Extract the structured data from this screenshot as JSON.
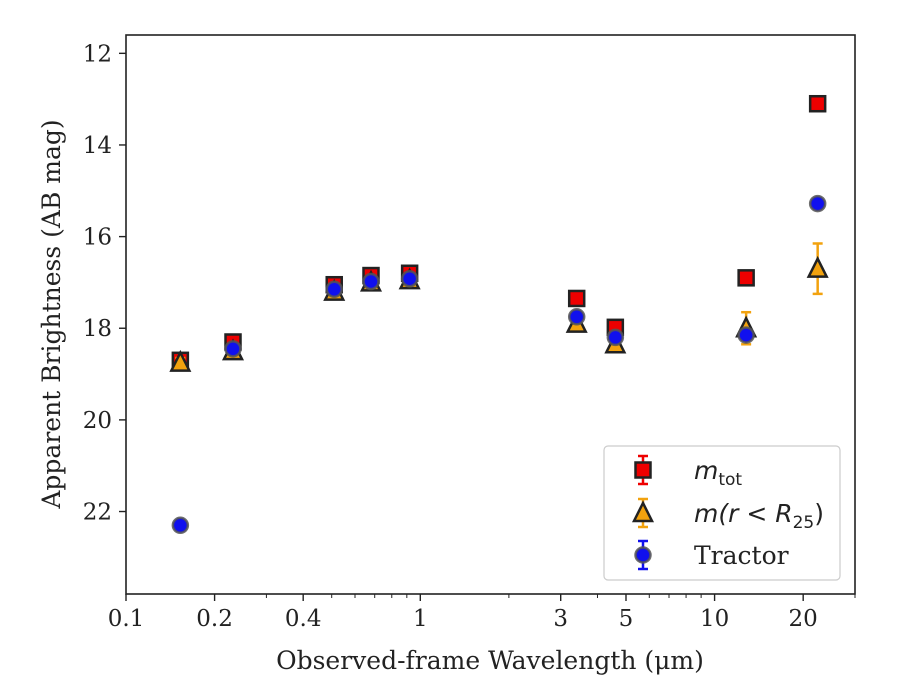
{
  "chart_data": {
    "type": "scatter",
    "title": "",
    "xlabel": "Observed-frame Wavelength (μm)",
    "ylabel": "Apparent Brightness (AB mag)",
    "x_scale": "log",
    "xlim": [
      0.1,
      30
    ],
    "ylim": [
      23.8,
      11.6
    ],
    "y_inverted": true,
    "grid": false,
    "legend_position": "lower-right",
    "x_ticks": [
      {
        "value": 0.1,
        "label": "0.1"
      },
      {
        "value": 0.2,
        "label": "0.2"
      },
      {
        "value": 0.4,
        "label": "0.4"
      },
      {
        "value": 1,
        "label": "1"
      },
      {
        "value": 3,
        "label": "3"
      },
      {
        "value": 5,
        "label": "5"
      },
      {
        "value": 10,
        "label": "10"
      },
      {
        "value": 20,
        "label": "20"
      }
    ],
    "y_ticks": [
      {
        "value": 12,
        "label": "12"
      },
      {
        "value": 14,
        "label": "14"
      },
      {
        "value": 16,
        "label": "16"
      },
      {
        "value": 18,
        "label": "18"
      },
      {
        "value": 20,
        "label": "20"
      },
      {
        "value": 22,
        "label": "22"
      }
    ],
    "series": [
      {
        "name": "m_tot",
        "legend_main": "m",
        "legend_sub": "tot",
        "legend_rest": "",
        "marker": "square",
        "fill": "#ee0000",
        "edge": "#222222",
        "errcolor": "#ee0000",
        "points": [
          {
            "x": 0.153,
            "y": 18.7,
            "err": 0.1
          },
          {
            "x": 0.231,
            "y": 18.3,
            "err": 0.07
          },
          {
            "x": 0.51,
            "y": 17.05,
            "err": 0.05
          },
          {
            "x": 0.68,
            "y": 16.85,
            "err": 0.05
          },
          {
            "x": 0.92,
            "y": 16.8,
            "err": 0.05
          },
          {
            "x": 3.4,
            "y": 17.35,
            "err": 0.05
          },
          {
            "x": 4.6,
            "y": 17.98,
            "err": 0.05
          },
          {
            "x": 12.8,
            "y": 16.9,
            "err": 0.05
          },
          {
            "x": 22.4,
            "y": 13.1,
            "err": 0.05
          }
        ]
      },
      {
        "name": "m(r < R25)",
        "legend_main": "m",
        "legend_sub": "25",
        "legend_rest": "(r < R",
        "legend_close": ")",
        "marker": "triangle",
        "fill": "#f2a20e",
        "edge": "#222222",
        "errcolor": "#f2a20e",
        "points": [
          {
            "x": 0.153,
            "y": 18.75,
            "err": 0.1
          },
          {
            "x": 0.231,
            "y": 18.5,
            "err": 0.05
          },
          {
            "x": 0.51,
            "y": 17.2,
            "err": 0.05
          },
          {
            "x": 0.68,
            "y": 17.0,
            "err": 0.05
          },
          {
            "x": 0.92,
            "y": 16.95,
            "err": 0.05
          },
          {
            "x": 3.4,
            "y": 17.9,
            "err": 0.05
          },
          {
            "x": 4.6,
            "y": 18.35,
            "err": 0.07
          },
          {
            "x": 12.8,
            "y": 18.0,
            "err": 0.35
          },
          {
            "x": 22.4,
            "y": 16.7,
            "err": 0.55
          }
        ]
      },
      {
        "name": "Tractor",
        "legend_main": "Tractor",
        "marker": "circle",
        "fill": "#1010ee",
        "edge": "#555555",
        "errcolor": "#1010ee",
        "points": [
          {
            "x": 0.153,
            "y": 22.3,
            "err": 0.05
          },
          {
            "x": 0.231,
            "y": 18.45,
            "err": 0.05
          },
          {
            "x": 0.51,
            "y": 17.15,
            "err": 0.05
          },
          {
            "x": 0.68,
            "y": 16.98,
            "err": 0.05
          },
          {
            "x": 0.92,
            "y": 16.92,
            "err": 0.05
          },
          {
            "x": 3.4,
            "y": 17.75,
            "err": 0.05
          },
          {
            "x": 4.6,
            "y": 18.2,
            "err": 0.05
          },
          {
            "x": 12.8,
            "y": 18.15,
            "err": 0.1
          },
          {
            "x": 22.4,
            "y": 15.28,
            "err": 0.05
          }
        ]
      }
    ]
  }
}
